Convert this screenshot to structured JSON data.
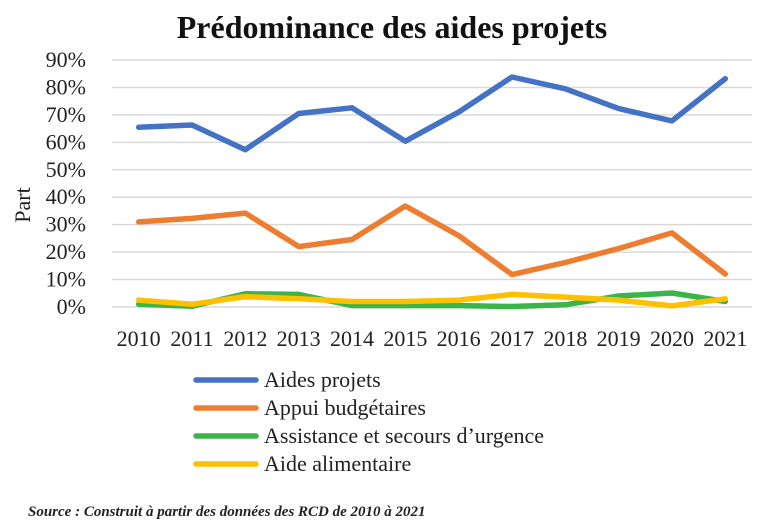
{
  "chart_data": {
    "type": "line",
    "title": "Prédominance des aides projets",
    "ylabel": "Part",
    "xlabel": "",
    "categories": [
      "2010",
      "2011",
      "2012",
      "2013",
      "2014",
      "2015",
      "2016",
      "2017",
      "2018",
      "2019",
      "2020",
      "2021"
    ],
    "ylim": [
      0,
      90
    ],
    "yticks": [
      "0%",
      "10%",
      "20%",
      "30%",
      "40%",
      "50%",
      "60%",
      "70%",
      "80%",
      "90%"
    ],
    "grid": true,
    "legend_position": "bottom",
    "series": [
      {
        "name": "Aides projets",
        "color": "#4472C4",
        "values": [
          65.5,
          66.3,
          57.3,
          70.5,
          72.6,
          60.4,
          71,
          83.8,
          79.5,
          72.3,
          67.8,
          83.2
        ]
      },
      {
        "name": "Appui budgétaires",
        "color": "#ED7D31",
        "values": [
          31,
          32.3,
          34.2,
          22,
          24.6,
          36.8,
          26,
          11.8,
          16.2,
          21.3,
          27,
          12
        ]
      },
      {
        "name": "Assistance et secours d’urgence",
        "color": "#3BB44A",
        "values": [
          1,
          0.3,
          4.8,
          4.6,
          0.5,
          0.5,
          0.5,
          0.2,
          0.8,
          4,
          5.1,
          2
        ]
      },
      {
        "name": "Aide alimentaire",
        "color": "#FFC000",
        "values": [
          2.5,
          1,
          3.8,
          3,
          2,
          2,
          2.5,
          4.6,
          3.6,
          2.5,
          0.4,
          3
        ]
      }
    ]
  },
  "source": "Source : Construit à partir des données des RCD de 2010 à 2021"
}
